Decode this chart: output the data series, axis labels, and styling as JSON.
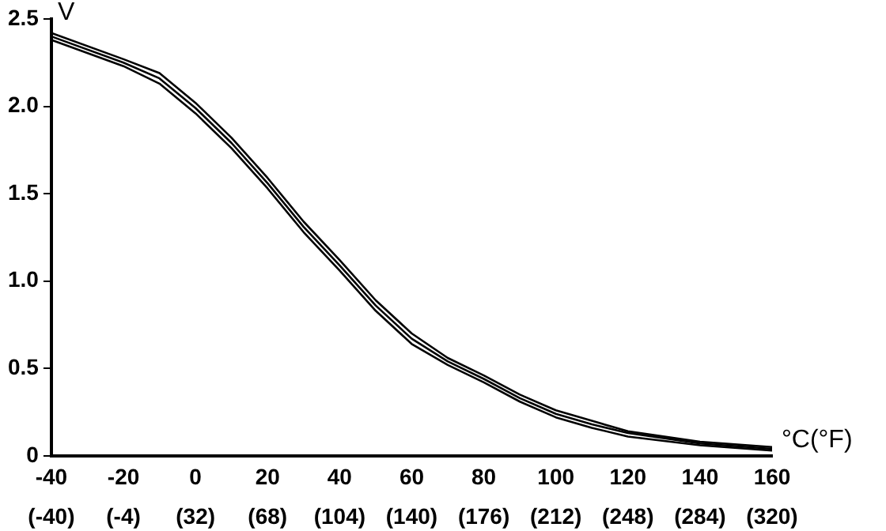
{
  "chart_data": {
    "type": "line",
    "xlabel": "°C(°F)",
    "ylabel": "V",
    "x": [
      -40,
      -20,
      -10,
      0,
      10,
      20,
      30,
      40,
      50,
      60,
      70,
      80,
      90,
      100,
      110,
      120,
      140,
      160
    ],
    "series": [
      {
        "color": "#000000",
        "values": [
          2.42,
          2.27,
          2.19,
          2.02,
          1.82,
          1.59,
          1.34,
          1.12,
          0.89,
          0.7,
          0.56,
          0.46,
          0.35,
          0.26,
          0.2,
          0.14,
          0.08,
          0.05
        ]
      },
      {
        "color": "#000000",
        "values": [
          2.4,
          2.25,
          2.16,
          1.99,
          1.79,
          1.56,
          1.31,
          1.09,
          0.86,
          0.67,
          0.54,
          0.44,
          0.33,
          0.24,
          0.18,
          0.13,
          0.07,
          0.04
        ]
      },
      {
        "color": "#000000",
        "values": [
          2.38,
          2.23,
          2.13,
          1.96,
          1.76,
          1.53,
          1.28,
          1.06,
          0.83,
          0.64,
          0.52,
          0.42,
          0.31,
          0.22,
          0.16,
          0.11,
          0.06,
          0.03
        ]
      }
    ],
    "xlim": [
      -40,
      160
    ],
    "xticks": [
      -40,
      -20,
      0,
      20,
      40,
      60,
      80,
      100,
      120,
      140,
      160
    ],
    "x2lim": [
      -40,
      320
    ],
    "x2ticks": [
      {
        "value": -40,
        "label": "(-40)"
      },
      {
        "value": -4,
        "label": "(-4)"
      },
      {
        "value": 32,
        "label": "(32)"
      },
      {
        "value": 68,
        "label": "(68)"
      },
      {
        "value": 104,
        "label": "(104)"
      },
      {
        "value": 140,
        "label": "(140)"
      },
      {
        "value": 176,
        "label": "(176)"
      },
      {
        "value": 212,
        "label": "(212)"
      },
      {
        "value": 248,
        "label": "(248)"
      },
      {
        "value": 284,
        "label": "(284)"
      },
      {
        "value": 320,
        "label": "(320)"
      }
    ],
    "ylim": [
      0,
      2.5
    ],
    "yticks": [
      {
        "value": 0,
        "label": "0"
      },
      {
        "value": 0.5,
        "label": "0.5"
      },
      {
        "value": 1,
        "label": "1.0"
      },
      {
        "value": 1.5,
        "label": "1.5"
      },
      {
        "value": 2,
        "label": "2.0"
      },
      {
        "value": 2.5,
        "label": "2.5"
      }
    ],
    "grid": false,
    "legend": false,
    "marker": "none",
    "line_style": "solid"
  }
}
